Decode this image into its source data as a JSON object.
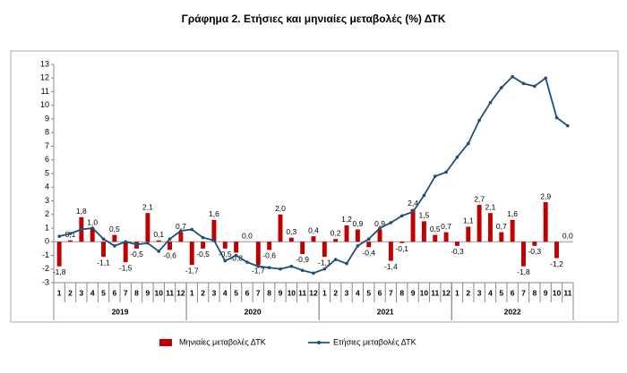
{
  "chart_data": {
    "type": "combo",
    "title": "Γράφημα 2. Ετήσιες και μηνιαίες μεταβολές (%) ΔΤΚ",
    "categories": [
      "1",
      "2",
      "3",
      "4",
      "5",
      "6",
      "7",
      "8",
      "9",
      "10",
      "11",
      "12",
      "1",
      "2",
      "3",
      "4",
      "5",
      "6",
      "7",
      "8",
      "9",
      "10",
      "11",
      "12",
      "1",
      "2",
      "3",
      "4",
      "5",
      "6",
      "7",
      "8",
      "9",
      "10",
      "11",
      "12",
      "1",
      "2",
      "3",
      "4",
      "5",
      "6",
      "7",
      "8",
      "9",
      "10",
      "11"
    ],
    "groups": [
      {
        "label": "2019",
        "span": 12
      },
      {
        "label": "2020",
        "span": 12
      },
      {
        "label": "2021",
        "span": 12
      },
      {
        "label": "2022",
        "span": 11
      }
    ],
    "series": [
      {
        "name": "Μηνιαίες μεταβολές ΔΤΚ",
        "type": "bar",
        "color": "#c00000",
        "values": [
          -1.8,
          0.1,
          1.8,
          1.0,
          -1.1,
          0.5,
          -1.5,
          -0.5,
          2.1,
          0.1,
          -0.6,
          0.7,
          -1.7,
          -0.5,
          1.6,
          -0.5,
          -0.8,
          0.0,
          -1.7,
          -0.6,
          2.0,
          0.3,
          -0.9,
          0.4,
          -1.1,
          0.2,
          1.2,
          0.9,
          -0.4,
          0.9,
          -1.4,
          -0.1,
          2.4,
          1.5,
          0.5,
          0.7,
          -0.3,
          1.1,
          2.7,
          2.1,
          0.7,
          1.6,
          -1.8,
          -0.3,
          2.9,
          -1.2,
          0.0
        ],
        "value_labels": [
          "-1,8",
          "0,1",
          "1,8",
          "1,0",
          "-1,1",
          "0,5",
          "-1,5",
          "-0,5",
          "2,1",
          "0,1",
          "-0,6",
          "0,7",
          "-1,7",
          "-0,5",
          "1,6",
          "-0,5",
          "-0,8",
          "0,0",
          "-1,7",
          "-0,6",
          "2,0",
          "0,3",
          "-0,9",
          "0,4",
          "-1,1",
          "0,2",
          "1,2",
          "0,9",
          "-0,4",
          "0,9",
          "-1,4",
          "-0,1",
          "2,4",
          "1,5",
          "0,5",
          "0,7",
          "-0,3",
          "1,1",
          "2,7",
          "2,1",
          "0,7",
          "1,6",
          "-1,8",
          "-0,3",
          "2,9",
          "-1,2",
          "0,0"
        ]
      },
      {
        "name": "Ετήσιες μεταβολές ΔΤΚ",
        "type": "line",
        "color": "#1f4e79",
        "values": [
          0.4,
          0.6,
          0.9,
          1.0,
          0.2,
          -0.3,
          0.0,
          -0.2,
          -0.1,
          -0.7,
          0.2,
          0.8,
          0.9,
          0.3,
          0.1,
          -1.4,
          -1.0,
          -1.5,
          -1.8,
          -1.9,
          -2.0,
          -1.8,
          -2.1,
          -2.3,
          -2.0,
          -1.3,
          -1.6,
          -0.3,
          0.2,
          1.0,
          1.4,
          1.9,
          2.2,
          3.4,
          4.8,
          5.1,
          6.2,
          7.2,
          8.9,
          10.2,
          11.3,
          12.1,
          11.6,
          11.4,
          12.0,
          9.1,
          8.5
        ]
      }
    ],
    "ylim": [
      -3,
      13
    ],
    "yticks": [
      -3,
      -2,
      -1,
      0,
      1,
      2,
      3,
      4,
      5,
      6,
      7,
      8,
      9,
      10,
      11,
      12,
      13
    ],
    "grid": false
  }
}
